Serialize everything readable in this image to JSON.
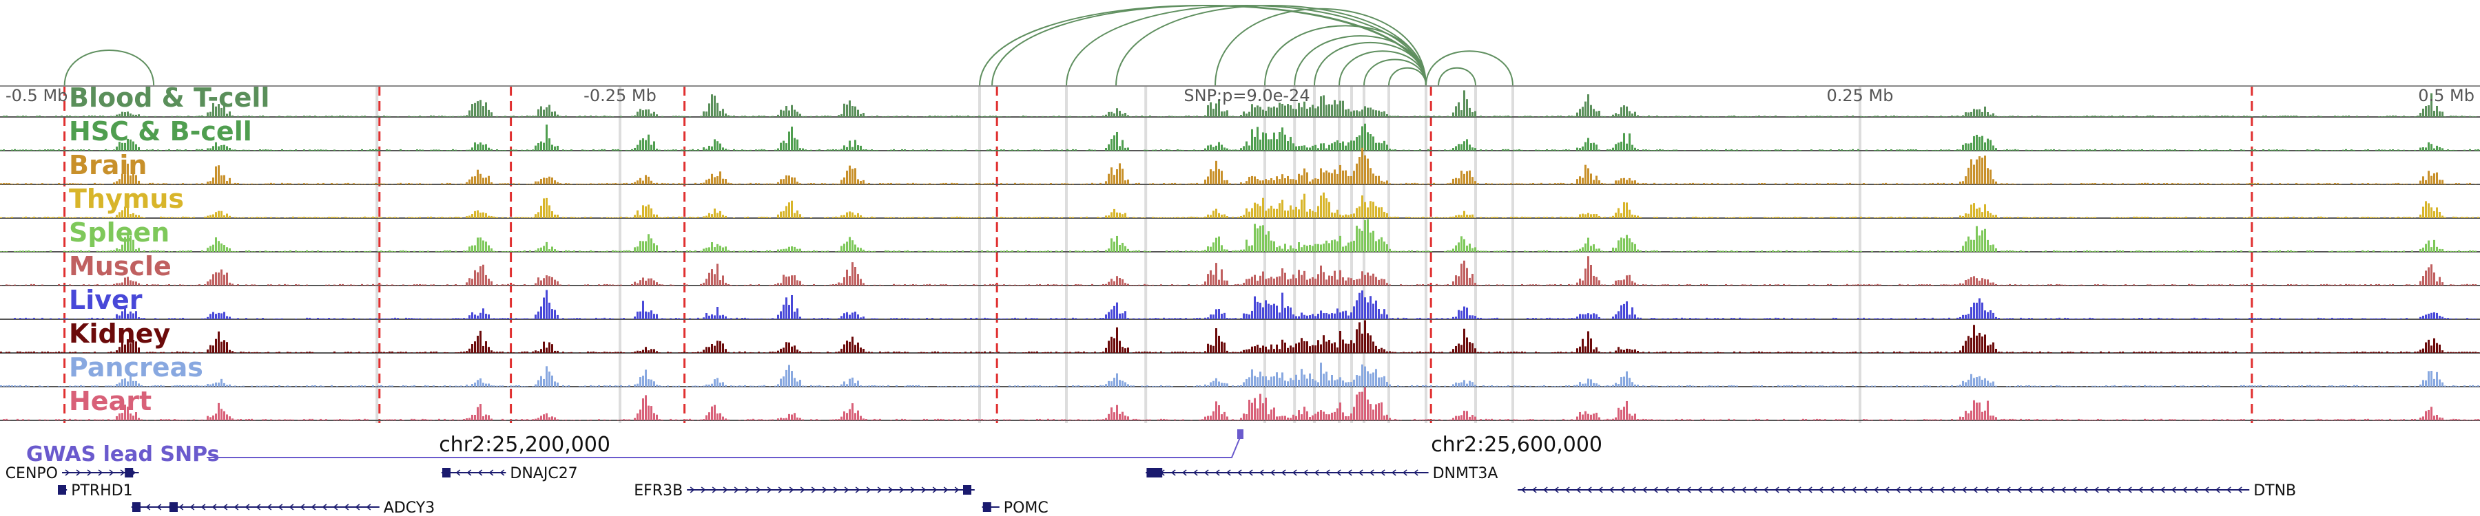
{
  "axis": {
    "ticks": [
      {
        "label": "-0.5 Mb",
        "pos": 0.0
      },
      {
        "label": "-0.25 Mb",
        "pos": 0.25
      },
      {
        "label": "0.25 Mb",
        "pos": 0.75
      },
      {
        "label": "0.5 Mb",
        "pos": 1.0
      }
    ],
    "snp_label": "SNP:p=9.0e-24",
    "snp_pos": 0.5
  },
  "tracks": [
    {
      "label": "Blood & T-cell",
      "color": "#5a8f5a"
    },
    {
      "label": "HSC & B-cell",
      "color": "#4f9e4f"
    },
    {
      "label": "Brain",
      "color": "#c8902a"
    },
    {
      "label": "Thymus",
      "color": "#d8b52a"
    },
    {
      "label": "Spleen",
      "color": "#7ec85a"
    },
    {
      "label": "Muscle",
      "color": "#c06060"
    },
    {
      "label": "Liver",
      "color": "#4848d8"
    },
    {
      "label": "Kidney",
      "color": "#6b0a0a"
    },
    {
      "label": "Pancreas",
      "color": "#88a8e0"
    },
    {
      "label": "Heart",
      "color": "#d86078"
    }
  ],
  "red_lines": [
    0.026,
    0.153,
    0.206,
    0.276,
    0.402,
    0.577,
    0.908
  ],
  "grey_lines": [
    0.152,
    0.25,
    0.395,
    0.43,
    0.462,
    0.51,
    0.522,
    0.53,
    0.54,
    0.545,
    0.55,
    0.56,
    0.575,
    0.595,
    0.61,
    0.75
  ],
  "coordinates": [
    {
      "label": "chr2:25,200,000",
      "pos": 0.177
    },
    {
      "label": "chr2:25,600,000",
      "pos": 0.577
    }
  ],
  "gwas": {
    "label": "GWAS lead SNPs",
    "color": "#6a5acd",
    "snp_pos": 0.5
  },
  "genes": [
    {
      "name": "CENPO",
      "start": 0.025,
      "end": 0.056,
      "row": 0,
      "strand": "+",
      "label_side": "left",
      "exons": [
        0.052
      ]
    },
    {
      "name": "DNAJC27",
      "start": 0.178,
      "end": 0.204,
      "row": 0,
      "strand": "-",
      "label_side": "right",
      "exons": [
        0.18
      ]
    },
    {
      "name": "DNMT3A",
      "start": 0.462,
      "end": 0.576,
      "row": 0,
      "strand": "-",
      "label_side": "right",
      "exons": [
        0.464,
        0.467
      ]
    },
    {
      "name": "PTRHD1",
      "start": 0.024,
      "end": 0.027,
      "row": 1,
      "strand": "+",
      "label_side": "right",
      "exons": [
        0.025
      ]
    },
    {
      "name": "EFR3B",
      "start": 0.277,
      "end": 0.393,
      "row": 1,
      "strand": "+",
      "label_side": "left",
      "exons": [
        0.39
      ]
    },
    {
      "name": "DTNB",
      "start": 0.612,
      "end": 0.907,
      "row": 1,
      "strand": "-",
      "label_side": "right",
      "exons": []
    },
    {
      "name": "ADCY3",
      "start": 0.053,
      "end": 0.153,
      "row": 2,
      "strand": "-",
      "label_side": "right",
      "exons": [
        0.055,
        0.07
      ]
    },
    {
      "name": "POMC",
      "start": 0.396,
      "end": 0.403,
      "row": 2,
      "strand": "-",
      "label_side": "right",
      "exons": [
        0.398
      ]
    }
  ],
  "peak_sites": [
    0.051,
    0.088,
    0.193,
    0.22,
    0.26,
    0.288,
    0.318,
    0.343,
    0.45,
    0.49,
    0.505,
    0.51,
    0.517,
    0.525,
    0.533,
    0.54,
    0.548,
    0.55,
    0.555,
    0.59,
    0.64,
    0.655,
    0.795,
    0.8,
    0.98
  ],
  "loops": [
    {
      "from": 0.026,
      "to": 0.062
    },
    {
      "from": 0.395,
      "to": 0.575
    },
    {
      "from": 0.4,
      "to": 0.575
    },
    {
      "from": 0.43,
      "to": 0.575
    },
    {
      "from": 0.45,
      "to": 0.575
    },
    {
      "from": 0.49,
      "to": 0.575
    },
    {
      "from": 0.51,
      "to": 0.575
    },
    {
      "from": 0.522,
      "to": 0.575
    },
    {
      "from": 0.53,
      "to": 0.575
    },
    {
      "from": 0.54,
      "to": 0.575
    },
    {
      "from": 0.55,
      "to": 0.575
    },
    {
      "from": 0.56,
      "to": 0.575
    },
    {
      "from": 0.575,
      "to": 0.61
    },
    {
      "from": 0.58,
      "to": 0.595
    }
  ]
}
